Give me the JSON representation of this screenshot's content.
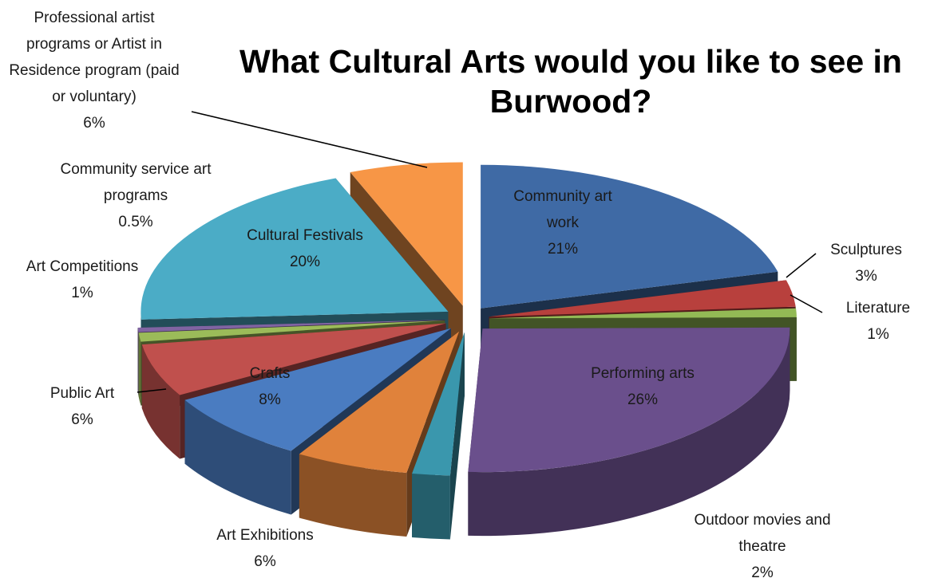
{
  "chart_data": {
    "type": "pie",
    "title": "What Cultural Arts would you like to see in Burwood?",
    "categories": [
      "Community art work",
      "Sculptures",
      "Literature",
      "Performing arts",
      "Outdoor movies and theatre",
      "Art Exhibitions",
      "Crafts",
      "Public Art",
      "Art Competitions",
      "Community service art programs",
      "Cultural Festivals",
      "Professional artist programs or Artist in Residence program (paid or voluntary)"
    ],
    "values": [
      21,
      3,
      1,
      26,
      2,
      6,
      8,
      6,
      1,
      0.5,
      20,
      6
    ],
    "value_labels": [
      "21%",
      "3%",
      "1%",
      "26%",
      "2%",
      "6%",
      "8%",
      "6%",
      "1%",
      "0.5%",
      "20%",
      "6%"
    ],
    "colors": [
      "#3f6aa5",
      "#b8403d",
      "#93ba55",
      "#6a4f8c",
      "#3a97ad",
      "#e0823b",
      "#4a7cc1",
      "#c0504d",
      "#9bbb59",
      "#8064a2",
      "#4bacc6",
      "#f79646"
    ]
  }
}
